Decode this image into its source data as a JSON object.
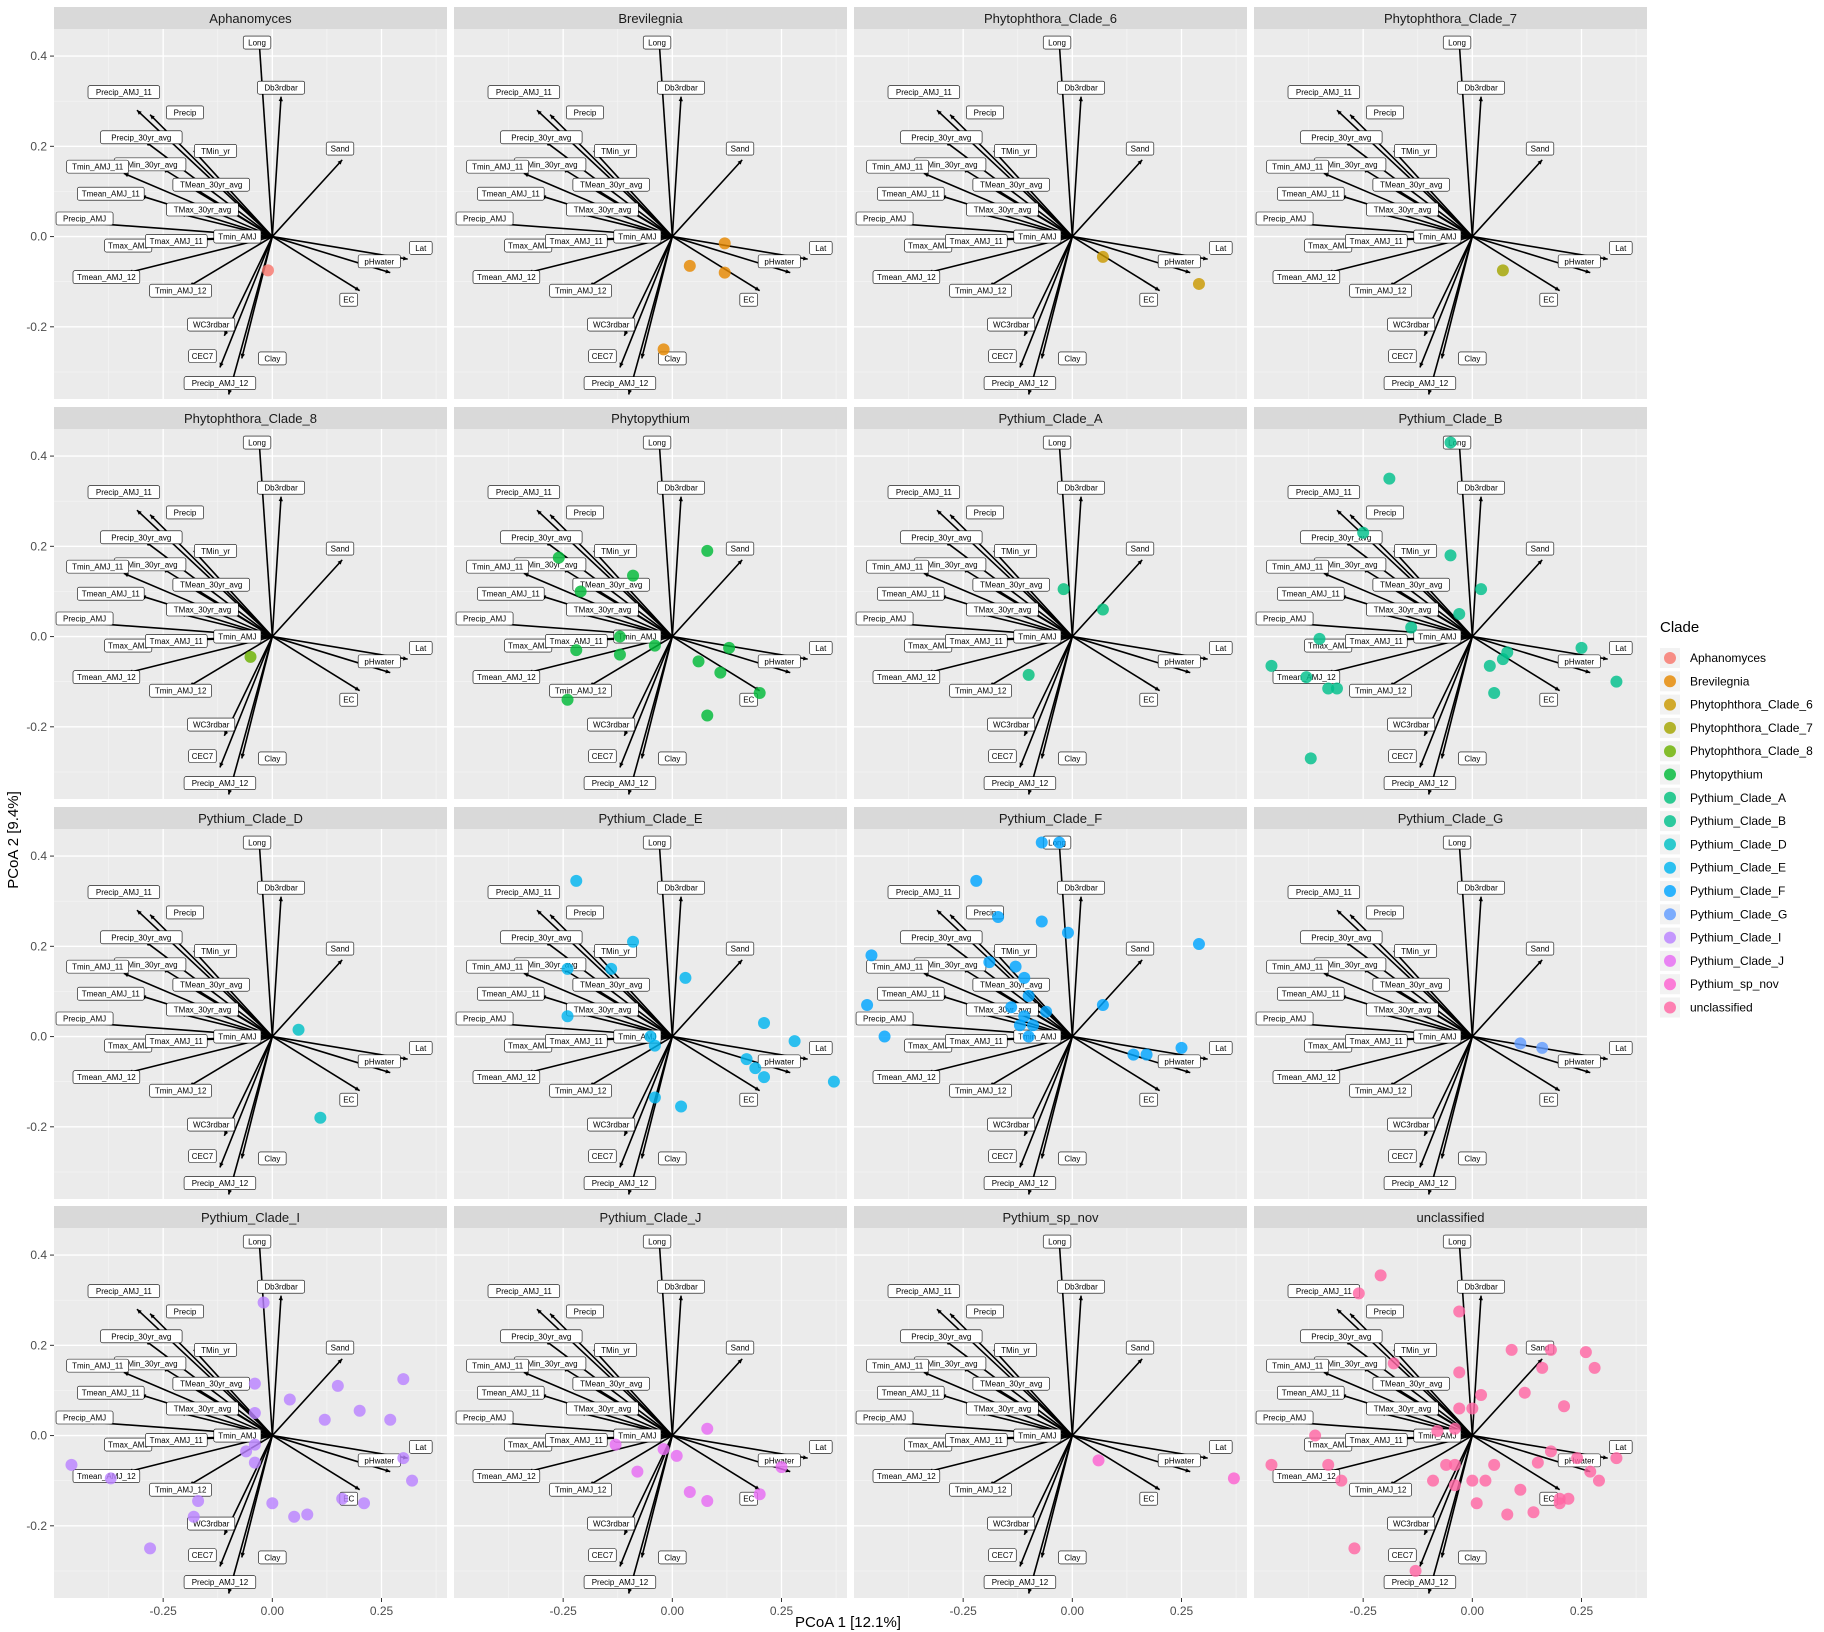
{
  "chart_data": {
    "type": "scatter",
    "subtype": "faceted PCoA biplot with environmental vectors",
    "xlabel": "PCoA 1 [12.1%]",
    "ylabel": "PCoA 2 [9.4%]",
    "xlim": [
      -0.5,
      0.4
    ],
    "ylim": [
      -0.36,
      0.46
    ],
    "x_ticks": [
      -0.25,
      0.0,
      0.25
    ],
    "x_tick_labels": [
      "-0.25",
      "0.00",
      "0.25"
    ],
    "y_ticks": [
      -0.2,
      0.0,
      0.2,
      0.4
    ],
    "y_tick_labels": [
      "-0.2",
      "0.0",
      "0.2",
      "0.4"
    ],
    "legend": {
      "title": "Clade",
      "position": "right"
    },
    "vectors": [
      {
        "name": "Long",
        "x": -0.03,
        "y": 0.43,
        "lx": -0.035,
        "ly": 0.43
      },
      {
        "name": "Db3rdbar",
        "x": 0.02,
        "y": 0.31,
        "lx": 0.02,
        "ly": 0.33
      },
      {
        "name": "Sand",
        "x": 0.16,
        "y": 0.17,
        "lx": 0.155,
        "ly": 0.195
      },
      {
        "name": "Precip_AMJ_11",
        "x": -0.31,
        "y": 0.28,
        "lx": -0.34,
        "ly": 0.32
      },
      {
        "name": "Precip",
        "x": -0.28,
        "y": 0.27,
        "lx": -0.2,
        "ly": 0.275
      },
      {
        "name": "Precip_30yr_avg",
        "x": -0.29,
        "y": 0.21,
        "lx": -0.3,
        "ly": 0.22
      },
      {
        "name": "TMin_yr",
        "x": -0.18,
        "y": 0.19,
        "lx": -0.13,
        "ly": 0.19
      },
      {
        "name": "TMin_30yr_avg",
        "x": -0.25,
        "y": 0.15,
        "lx": -0.28,
        "ly": 0.16
      },
      {
        "name": "Tmin_AMJ_11",
        "x": -0.34,
        "y": 0.14,
        "lx": -0.4,
        "ly": 0.155
      },
      {
        "name": "TMean_30yr_avg",
        "x": -0.19,
        "y": 0.11,
        "lx": -0.14,
        "ly": 0.115
      },
      {
        "name": "Tmean_AMJ_11",
        "x": -0.3,
        "y": 0.09,
        "lx": -0.37,
        "ly": 0.095
      },
      {
        "name": "TMax_30yr_avg",
        "x": -0.21,
        "y": 0.05,
        "lx": -0.16,
        "ly": 0.06
      },
      {
        "name": "Precip_AMJ",
        "x": -0.42,
        "y": 0.03,
        "lx": -0.43,
        "ly": 0.04
      },
      {
        "name": "Tmax_AMJ",
        "x": -0.3,
        "y": -0.01,
        "lx": -0.33,
        "ly": -0.02
      },
      {
        "name": "Tmax_AMJ_11",
        "x": -0.23,
        "y": -0.01,
        "lx": -0.22,
        "ly": -0.01
      },
      {
        "name": "Tmin_AMJ",
        "x": -0.11,
        "y": -0.01,
        "lx": -0.08,
        "ly": 0.0
      },
      {
        "name": "Tmean_AMJ_12",
        "x": -0.33,
        "y": -0.08,
        "lx": -0.38,
        "ly": -0.09
      },
      {
        "name": "Tmin_AMJ_12",
        "x": -0.19,
        "y": -0.11,
        "lx": -0.21,
        "ly": -0.12
      },
      {
        "name": "pHwater",
        "x": 0.27,
        "y": -0.08,
        "lx": 0.245,
        "ly": -0.055
      },
      {
        "name": "Lat",
        "x": 0.31,
        "y": -0.05,
        "lx": 0.34,
        "ly": -0.025
      },
      {
        "name": "EC",
        "x": 0.2,
        "y": -0.12,
        "lx": 0.175,
        "ly": -0.14
      },
      {
        "name": "WC3rdbar",
        "x": -0.11,
        "y": -0.22,
        "lx": -0.14,
        "ly": -0.195
      },
      {
        "name": "CEC7",
        "x": -0.12,
        "y": -0.29,
        "lx": -0.16,
        "ly": -0.265
      },
      {
        "name": "Clay",
        "x": -0.07,
        "y": -0.27,
        "lx": 0.0,
        "ly": -0.27
      },
      {
        "name": "Precip_AMJ_12",
        "x": -0.1,
        "y": -0.35,
        "lx": -0.12,
        "ly": -0.325
      }
    ],
    "series": [
      {
        "name": "Aphanomyces",
        "color": "#F8766D",
        "points": [
          [
            -0.01,
            -0.075
          ]
        ]
      },
      {
        "name": "Brevilegnia",
        "color": "#E58700",
        "points": [
          [
            0.04,
            -0.065
          ],
          [
            0.12,
            -0.015
          ],
          [
            0.12,
            -0.08
          ],
          [
            -0.02,
            -0.25
          ]
        ]
      },
      {
        "name": "Phytophthora_Clade_6",
        "color": "#C99800",
        "points": [
          [
            0.07,
            -0.045
          ],
          [
            0.29,
            -0.105
          ]
        ]
      },
      {
        "name": "Phytophthora_Clade_7",
        "color": "#A3A500",
        "points": [
          [
            0.07,
            -0.075
          ]
        ]
      },
      {
        "name": "Phytophthora_Clade_8",
        "color": "#6BB100",
        "points": [
          [
            -0.05,
            -0.045
          ]
        ]
      },
      {
        "name": "Phytopythium",
        "color": "#00BA38",
        "points": [
          [
            -0.26,
            0.175
          ],
          [
            -0.21,
            0.1
          ],
          [
            -0.09,
            0.135
          ],
          [
            0.08,
            0.19
          ],
          [
            -0.22,
            -0.03
          ],
          [
            -0.12,
            0.0
          ],
          [
            -0.12,
            -0.04
          ],
          [
            -0.04,
            -0.02
          ],
          [
            0.06,
            -0.055
          ],
          [
            0.13,
            -0.025
          ],
          [
            0.11,
            -0.08
          ],
          [
            0.2,
            -0.125
          ],
          [
            0.08,
            -0.175
          ],
          [
            -0.24,
            -0.14
          ]
        ]
      },
      {
        "name": "Pythium_Clade_A",
        "color": "#00BF7D",
        "points": [
          [
            -0.02,
            0.105
          ],
          [
            0.07,
            0.06
          ],
          [
            -0.1,
            -0.085
          ]
        ]
      },
      {
        "name": "Pythium_Clade_B",
        "color": "#00C08B",
        "points": [
          [
            -0.05,
            0.43
          ],
          [
            -0.19,
            0.35
          ],
          [
            -0.25,
            0.23
          ],
          [
            -0.05,
            0.18
          ],
          [
            0.02,
            0.105
          ],
          [
            -0.03,
            0.05
          ],
          [
            -0.14,
            0.02
          ],
          [
            -0.35,
            -0.005
          ],
          [
            -0.46,
            -0.065
          ],
          [
            -0.38,
            -0.09
          ],
          [
            -0.33,
            -0.115
          ],
          [
            -0.31,
            -0.115
          ],
          [
            0.04,
            -0.065
          ],
          [
            0.07,
            -0.05
          ],
          [
            0.08,
            -0.035
          ],
          [
            0.25,
            -0.025
          ],
          [
            0.33,
            -0.1
          ],
          [
            0.05,
            -0.125
          ],
          [
            -0.37,
            -0.27
          ]
        ]
      },
      {
        "name": "Pythium_Clade_D",
        "color": "#00BFC4",
        "points": [
          [
            0.06,
            0.015
          ],
          [
            0.11,
            -0.18
          ]
        ]
      },
      {
        "name": "Pythium_Clade_E",
        "color": "#00B4EF",
        "points": [
          [
            -0.22,
            0.345
          ],
          [
            -0.09,
            0.21
          ],
          [
            -0.24,
            0.15
          ],
          [
            -0.14,
            0.15
          ],
          [
            0.03,
            0.13
          ],
          [
            -0.24,
            0.045
          ],
          [
            0.21,
            0.03
          ],
          [
            0.28,
            -0.01
          ],
          [
            0.37,
            -0.1
          ],
          [
            -0.05,
            0.0
          ],
          [
            -0.04,
            -0.02
          ],
          [
            0.17,
            -0.05
          ],
          [
            0.19,
            -0.07
          ],
          [
            0.21,
            -0.09
          ],
          [
            -0.04,
            -0.135
          ],
          [
            0.02,
            -0.155
          ]
        ]
      },
      {
        "name": "Pythium_Clade_F",
        "color": "#00A5FF",
        "points": [
          [
            -0.07,
            0.43
          ],
          [
            -0.03,
            0.43
          ],
          [
            -0.22,
            0.345
          ],
          [
            -0.17,
            0.265
          ],
          [
            -0.07,
            0.255
          ],
          [
            -0.01,
            0.23
          ],
          [
            -0.46,
            0.18
          ],
          [
            -0.19,
            0.165
          ],
          [
            -0.13,
            0.155
          ],
          [
            -0.11,
            0.13
          ],
          [
            -0.1,
            0.09
          ],
          [
            -0.14,
            0.065
          ],
          [
            -0.11,
            0.045
          ],
          [
            -0.12,
            0.025
          ],
          [
            -0.09,
            0.025
          ],
          [
            -0.06,
            0.055
          ],
          [
            0.07,
            0.07
          ],
          [
            0.29,
            0.205
          ],
          [
            -0.47,
            0.07
          ],
          [
            -0.43,
            0.0
          ],
          [
            -0.1,
            0.0
          ],
          [
            0.14,
            -0.04
          ],
          [
            0.17,
            -0.04
          ],
          [
            0.25,
            -0.025
          ]
        ]
      },
      {
        "name": "Pythium_Clade_G",
        "color": "#619CFF",
        "points": [
          [
            0.11,
            -0.015
          ],
          [
            0.16,
            -0.025
          ]
        ]
      },
      {
        "name": "Pythium_Clade_I",
        "color": "#B983FF",
        "points": [
          [
            -0.02,
            0.295
          ],
          [
            0.3,
            0.125
          ],
          [
            0.15,
            0.11
          ],
          [
            -0.04,
            0.115
          ],
          [
            -0.04,
            0.05
          ],
          [
            0.04,
            0.08
          ],
          [
            0.2,
            0.055
          ],
          [
            0.12,
            0.035
          ],
          [
            0.27,
            0.035
          ],
          [
            -0.04,
            -0.02
          ],
          [
            -0.06,
            -0.035
          ],
          [
            -0.04,
            -0.06
          ],
          [
            0.3,
            -0.05
          ],
          [
            0.32,
            -0.1
          ],
          [
            -0.46,
            -0.065
          ],
          [
            -0.37,
            -0.095
          ],
          [
            -0.17,
            -0.145
          ],
          [
            -0.18,
            -0.18
          ],
          [
            0.0,
            -0.15
          ],
          [
            0.05,
            -0.18
          ],
          [
            0.08,
            -0.175
          ],
          [
            0.16,
            -0.14
          ],
          [
            0.21,
            -0.15
          ],
          [
            -0.28,
            -0.25
          ]
        ]
      },
      {
        "name": "Pythium_Clade_J",
        "color": "#E76BF3",
        "points": [
          [
            0.08,
            0.015
          ],
          [
            -0.13,
            -0.02
          ],
          [
            -0.08,
            -0.08
          ],
          [
            -0.02,
            -0.03
          ],
          [
            0.01,
            -0.045
          ],
          [
            0.04,
            -0.125
          ],
          [
            0.08,
            -0.145
          ],
          [
            0.2,
            -0.13
          ],
          [
            0.25,
            -0.07
          ]
        ]
      },
      {
        "name": "Pythium_sp_nov",
        "color": "#FD61D1",
        "points": [
          [
            0.06,
            -0.055
          ],
          [
            0.37,
            -0.095
          ]
        ]
      },
      {
        "name": "unclassified",
        "color": "#FF67A4",
        "points": [
          [
            -0.03,
            0.275
          ],
          [
            -0.21,
            0.355
          ],
          [
            -0.26,
            0.315
          ],
          [
            -0.18,
            0.16
          ],
          [
            -0.03,
            0.14
          ],
          [
            0.09,
            0.19
          ],
          [
            0.18,
            0.19
          ],
          [
            0.26,
            0.185
          ],
          [
            0.28,
            0.15
          ],
          [
            0.16,
            0.15
          ],
          [
            0.12,
            0.095
          ],
          [
            0.21,
            0.065
          ],
          [
            0.02,
            0.09
          ],
          [
            0.0,
            0.06
          ],
          [
            -0.03,
            0.06
          ],
          [
            -0.04,
            0.015
          ],
          [
            -0.08,
            0.01
          ],
          [
            0.05,
            -0.065
          ],
          [
            0.15,
            -0.06
          ],
          [
            0.18,
            -0.035
          ],
          [
            0.24,
            -0.05
          ],
          [
            0.27,
            -0.08
          ],
          [
            0.33,
            -0.05
          ],
          [
            -0.36,
            0.0
          ],
          [
            -0.46,
            -0.065
          ],
          [
            -0.33,
            -0.065
          ],
          [
            -0.3,
            -0.1
          ],
          [
            -0.09,
            -0.1
          ],
          [
            -0.06,
            -0.065
          ],
          [
            -0.04,
            -0.065
          ],
          [
            0.0,
            -0.1
          ],
          [
            0.03,
            -0.1
          ],
          [
            0.11,
            -0.12
          ],
          [
            0.2,
            -0.14
          ],
          [
            0.22,
            -0.14
          ],
          [
            -0.04,
            -0.11
          ],
          [
            0.01,
            -0.15
          ],
          [
            0.08,
            -0.175
          ],
          [
            0.14,
            -0.17
          ],
          [
            0.2,
            -0.15
          ],
          [
            0.29,
            -0.1
          ],
          [
            -0.27,
            -0.25
          ],
          [
            -0.13,
            -0.3
          ]
        ]
      }
    ]
  }
}
